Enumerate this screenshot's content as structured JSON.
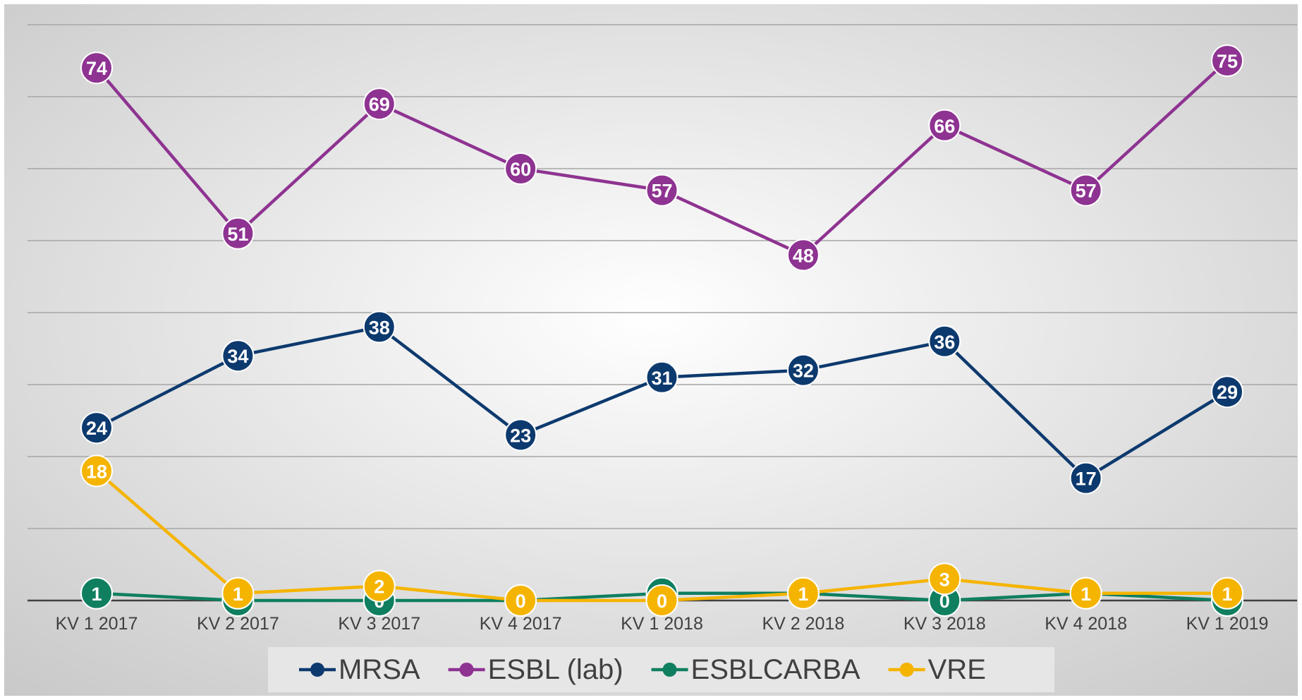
{
  "chart_data": {
    "type": "line",
    "categories": [
      "KV 1 2017",
      "KV 2 2017",
      "KV 3 2017",
      "KV 4 2017",
      "KV 1 2018",
      "KV 2 2018",
      "KV 3 2018",
      "KV 4 2018",
      "KV 1 2019"
    ],
    "series": [
      {
        "name": "MRSA",
        "color": "#0d3a6e",
        "values": [
          24,
          34,
          38,
          23,
          31,
          32,
          36,
          17,
          29
        ]
      },
      {
        "name": "ESBL (lab)",
        "color": "#8e3391",
        "values": [
          74,
          51,
          69,
          60,
          57,
          48,
          66,
          57,
          75
        ]
      },
      {
        "name": "ESBLCARBA",
        "color": "#0f7f60",
        "values": [
          1,
          0,
          0,
          0,
          1,
          1,
          0,
          1,
          0
        ]
      },
      {
        "name": "VRE",
        "color": "#f5b400",
        "values": [
          18,
          1,
          2,
          0,
          0,
          1,
          3,
          1,
          1
        ]
      }
    ],
    "ylim": [
      0,
      80
    ],
    "yticks": [
      0,
      10,
      20,
      30,
      40,
      50,
      60,
      70,
      80
    ],
    "grid": true,
    "legend": "bottom"
  }
}
